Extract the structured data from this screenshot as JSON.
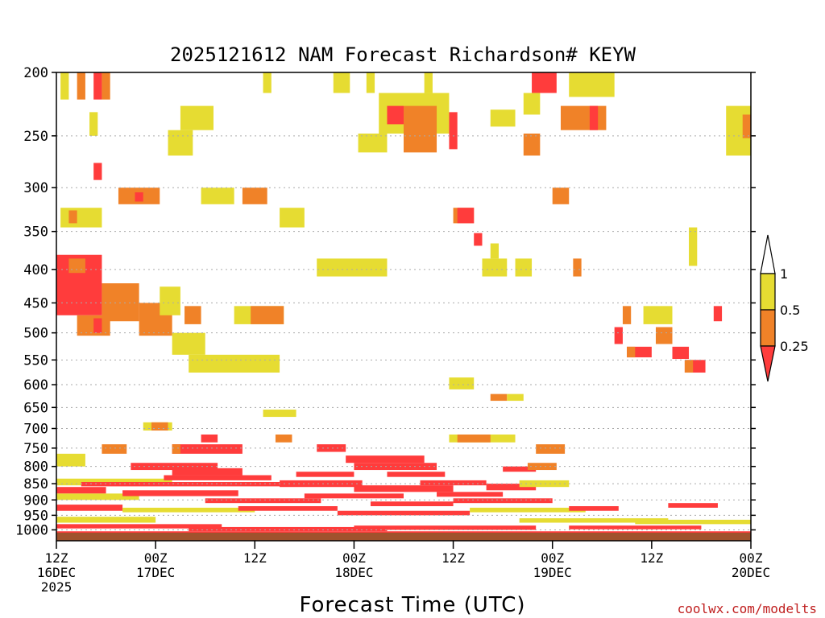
{
  "chart_data": {
    "type": "heatmap",
    "title": "2025121612 NAM Forecast Richardson# KEYW",
    "xlabel": "Forecast Time (UTC)",
    "ylabel": "",
    "credit": "coolwx.com/modelts",
    "y_scale": "log",
    "ylim": [
      200,
      1025
    ],
    "y_ticks": [
      {
        "v": 200,
        "t": "200"
      },
      {
        "v": 250,
        "t": "250"
      },
      {
        "v": 300,
        "t": "300"
      },
      {
        "v": 350,
        "t": "350"
      },
      {
        "v": 400,
        "t": "400"
      },
      {
        "v": 450,
        "t": "450"
      },
      {
        "v": 500,
        "t": "500"
      },
      {
        "v": 550,
        "t": "550"
      },
      {
        "v": 600,
        "t": "600"
      },
      {
        "v": 650,
        "t": "650"
      },
      {
        "v": 700,
        "t": "700"
      },
      {
        "v": 750,
        "t": "750"
      },
      {
        "v": 800,
        "t": "800"
      },
      {
        "v": 850,
        "t": "850"
      },
      {
        "v": 900,
        "t": "900"
      },
      {
        "v": 950,
        "t": "950"
      },
      {
        "v": 1000,
        "t": "1000"
      }
    ],
    "x_ticks": [
      {
        "h": 0,
        "l1": "12Z",
        "l2": "16DEC",
        "l3": "2025"
      },
      {
        "h": 12,
        "l1": "00Z",
        "l2": "17DEC",
        "l3": ""
      },
      {
        "h": 24,
        "l1": "12Z",
        "l2": "",
        "l3": ""
      },
      {
        "h": 36,
        "l1": "00Z",
        "l2": "18DEC",
        "l3": ""
      },
      {
        "h": 48,
        "l1": "12Z",
        "l2": "",
        "l3": ""
      },
      {
        "h": 60,
        "l1": "00Z",
        "l2": "19DEC",
        "l3": ""
      },
      {
        "h": 72,
        "l1": "12Z",
        "l2": "",
        "l3": ""
      },
      {
        "h": 84,
        "l1": "00Z",
        "l2": "20DEC",
        "l3": ""
      }
    ],
    "xlim": [
      0,
      84
    ],
    "colors": {
      "lt025": "#ff3c3c",
      "r025_05": "#f08228",
      "r05_1": "#e6dc32",
      "ground": "#a0522d"
    },
    "legend": {
      "labels": [
        "1",
        "0.5",
        "0.25"
      ],
      "placement": "right"
    },
    "patches": [
      {
        "x0": 0.5,
        "x1": 1.5,
        "p0": 200,
        "p1": 220,
        "c": "y"
      },
      {
        "x0": 2.5,
        "x1": 3.5,
        "p0": 200,
        "p1": 220,
        "c": "o"
      },
      {
        "x0": 4.5,
        "x1": 5.5,
        "p0": 200,
        "p1": 220,
        "c": "r"
      },
      {
        "x0": 5.5,
        "x1": 6.5,
        "p0": 200,
        "p1": 220,
        "c": "o"
      },
      {
        "x0": 4,
        "x1": 5,
        "p0": 230,
        "p1": 250,
        "c": "y"
      },
      {
        "x0": 15,
        "x1": 19,
        "p0": 225,
        "p1": 245,
        "c": "y"
      },
      {
        "x0": 13.5,
        "x1": 16.5,
        "p0": 245,
        "p1": 268,
        "c": "y"
      },
      {
        "x0": 25,
        "x1": 26,
        "p0": 200,
        "p1": 215,
        "c": "y"
      },
      {
        "x0": 33.5,
        "x1": 35.5,
        "p0": 200,
        "p1": 215,
        "c": "y"
      },
      {
        "x0": 37.5,
        "x1": 38.5,
        "p0": 200,
        "p1": 215,
        "c": "y"
      },
      {
        "x0": 44.5,
        "x1": 45.5,
        "p0": 200,
        "p1": 215,
        "c": "y"
      },
      {
        "x0": 39,
        "x1": 47.5,
        "p0": 215,
        "p1": 248,
        "c": "y"
      },
      {
        "x0": 40,
        "x1": 42,
        "p0": 225,
        "p1": 240,
        "c": "r"
      },
      {
        "x0": 42,
        "x1": 46,
        "p0": 225,
        "p1": 265,
        "c": "o"
      },
      {
        "x0": 47.5,
        "x1": 48.5,
        "p0": 230,
        "p1": 262,
        "c": "r"
      },
      {
        "x0": 36.5,
        "x1": 40,
        "p0": 248,
        "p1": 265,
        "c": "y"
      },
      {
        "x0": 52.5,
        "x1": 55.5,
        "p0": 228,
        "p1": 242,
        "c": "y"
      },
      {
        "x0": 57.5,
        "x1": 60.5,
        "p0": 200,
        "p1": 215,
        "c": "r"
      },
      {
        "x0": 56.5,
        "x1": 58.5,
        "p0": 215,
        "p1": 232,
        "c": "y"
      },
      {
        "x0": 56.5,
        "x1": 58.5,
        "p0": 248,
        "p1": 268,
        "c": "o"
      },
      {
        "x0": 62,
        "x1": 67.5,
        "p0": 200,
        "p1": 218,
        "c": "y"
      },
      {
        "x0": 61,
        "x1": 66.5,
        "p0": 225,
        "p1": 245,
        "c": "o"
      },
      {
        "x0": 64.5,
        "x1": 65.5,
        "p0": 225,
        "p1": 245,
        "c": "r"
      },
      {
        "x0": 81,
        "x1": 84,
        "p0": 225,
        "p1": 268,
        "c": "y"
      },
      {
        "x0": 83,
        "x1": 84,
        "p0": 232,
        "p1": 252,
        "c": "o"
      },
      {
        "x0": 4.5,
        "x1": 5.5,
        "p0": 275,
        "p1": 292,
        "c": "r"
      },
      {
        "x0": 7.5,
        "x1": 12.5,
        "p0": 300,
        "p1": 318,
        "c": "o"
      },
      {
        "x0": 9.5,
        "x1": 10.5,
        "p0": 305,
        "p1": 315,
        "c": "r"
      },
      {
        "x0": 17.5,
        "x1": 21.5,
        "p0": 300,
        "p1": 318,
        "c": "y"
      },
      {
        "x0": 22.5,
        "x1": 25.5,
        "p0": 300,
        "p1": 318,
        "c": "o"
      },
      {
        "x0": 27,
        "x1": 30,
        "p0": 322,
        "p1": 345,
        "c": "y"
      },
      {
        "x0": 48,
        "x1": 50.5,
        "p0": 322,
        "p1": 340,
        "c": "o"
      },
      {
        "x0": 48.5,
        "x1": 50.5,
        "p0": 322,
        "p1": 340,
        "c": "r"
      },
      {
        "x0": 60,
        "x1": 62,
        "p0": 300,
        "p1": 318,
        "c": "o"
      },
      {
        "x0": 0.5,
        "x1": 5.5,
        "p0": 322,
        "p1": 345,
        "c": "y"
      },
      {
        "x0": 1.5,
        "x1": 2.5,
        "p0": 325,
        "p1": 340,
        "c": "o"
      },
      {
        "x0": 50.5,
        "x1": 51.5,
        "p0": 352,
        "p1": 368,
        "c": "r"
      },
      {
        "x0": 0,
        "x1": 5.5,
        "p0": 380,
        "p1": 470,
        "c": "r"
      },
      {
        "x0": 1.5,
        "x1": 3.5,
        "p0": 385,
        "p1": 405,
        "c": "o"
      },
      {
        "x0": 5.5,
        "x1": 10,
        "p0": 420,
        "p1": 480,
        "c": "o"
      },
      {
        "x0": 10,
        "x1": 14,
        "p0": 450,
        "p1": 505,
        "c": "o"
      },
      {
        "x0": 2.5,
        "x1": 6.5,
        "p0": 470,
        "p1": 505,
        "c": "o"
      },
      {
        "x0": 4.5,
        "x1": 5.5,
        "p0": 475,
        "p1": 500,
        "c": "r"
      },
      {
        "x0": 12.5,
        "x1": 15,
        "p0": 425,
        "p1": 470,
        "c": "y"
      },
      {
        "x0": 14,
        "x1": 18,
        "p0": 500,
        "p1": 540,
        "c": "y"
      },
      {
        "x0": 16,
        "x1": 27,
        "p0": 540,
        "p1": 575,
        "c": "y"
      },
      {
        "x0": 15.5,
        "x1": 17.5,
        "p0": 455,
        "p1": 485,
        "c": "o"
      },
      {
        "x0": 21.5,
        "x1": 27.5,
        "p0": 455,
        "p1": 485,
        "c": "y"
      },
      {
        "x0": 23.5,
        "x1": 27.5,
        "p0": 455,
        "p1": 485,
        "c": "o"
      },
      {
        "x0": 31.5,
        "x1": 40,
        "p0": 385,
        "p1": 410,
        "c": "y"
      },
      {
        "x0": 51.5,
        "x1": 54.5,
        "p0": 385,
        "p1": 410,
        "c": "y"
      },
      {
        "x0": 55.5,
        "x1": 57.5,
        "p0": 385,
        "p1": 410,
        "c": "y"
      },
      {
        "x0": 52.5,
        "x1": 53.5,
        "p0": 365,
        "p1": 385,
        "c": "y"
      },
      {
        "x0": 62.5,
        "x1": 63.5,
        "p0": 385,
        "p1": 410,
        "c": "o"
      },
      {
        "x0": 76.5,
        "x1": 77.5,
        "p0": 345,
        "p1": 395,
        "c": "y"
      },
      {
        "x0": 68.5,
        "x1": 69.5,
        "p0": 455,
        "p1": 485,
        "c": "o"
      },
      {
        "x0": 71,
        "x1": 74.5,
        "p0": 455,
        "p1": 485,
        "c": "y"
      },
      {
        "x0": 72.5,
        "x1": 74.5,
        "p0": 490,
        "p1": 520,
        "c": "o"
      },
      {
        "x0": 67.5,
        "x1": 68.5,
        "p0": 490,
        "p1": 520,
        "c": "r"
      },
      {
        "x0": 69,
        "x1": 72,
        "p0": 525,
        "p1": 545,
        "c": "r"
      },
      {
        "x0": 69,
        "x1": 70,
        "p0": 525,
        "p1": 545,
        "c": "o"
      },
      {
        "x0": 74.5,
        "x1": 76.5,
        "p0": 525,
        "p1": 548,
        "c": "r"
      },
      {
        "x0": 76,
        "x1": 78.5,
        "p0": 550,
        "p1": 575,
        "c": "r"
      },
      {
        "x0": 76,
        "x1": 77,
        "p0": 550,
        "p1": 575,
        "c": "o"
      },
      {
        "x0": 79.5,
        "x1": 80.5,
        "p0": 455,
        "p1": 480,
        "c": "r"
      },
      {
        "x0": 47.5,
        "x1": 50.5,
        "p0": 585,
        "p1": 610,
        "c": "y"
      },
      {
        "x0": 52.5,
        "x1": 54.5,
        "p0": 620,
        "p1": 635,
        "c": "o"
      },
      {
        "x0": 54.5,
        "x1": 56.5,
        "p0": 620,
        "p1": 635,
        "c": "y"
      },
      {
        "x0": 25,
        "x1": 29,
        "p0": 655,
        "p1": 672,
        "c": "y"
      },
      {
        "x0": 10.5,
        "x1": 14,
        "p0": 685,
        "p1": 705,
        "c": "y"
      },
      {
        "x0": 11.5,
        "x1": 13.5,
        "p0": 685,
        "p1": 705,
        "c": "o"
      },
      {
        "x0": 47.5,
        "x1": 55.5,
        "p0": 715,
        "p1": 735,
        "c": "y"
      },
      {
        "x0": 48.5,
        "x1": 52.5,
        "p0": 715,
        "p1": 735,
        "c": "o"
      },
      {
        "x0": 26.5,
        "x1": 28.5,
        "p0": 715,
        "p1": 735,
        "c": "o"
      },
      {
        "x0": 17.5,
        "x1": 19.5,
        "p0": 715,
        "p1": 735,
        "c": "r"
      },
      {
        "x0": 5.5,
        "x1": 8.5,
        "p0": 740,
        "p1": 765,
        "c": "o"
      },
      {
        "x0": 14,
        "x1": 22.5,
        "p0": 740,
        "p1": 765,
        "c": "r"
      },
      {
        "x0": 14,
        "x1": 15,
        "p0": 740,
        "p1": 765,
        "c": "o"
      },
      {
        "x0": 31.5,
        "x1": 35,
        "p0": 740,
        "p1": 760,
        "c": "r"
      },
      {
        "x0": 58,
        "x1": 61.5,
        "p0": 740,
        "p1": 765,
        "c": "o"
      },
      {
        "x0": 0,
        "x1": 3.5,
        "p0": 765,
        "p1": 800,
        "c": "y"
      },
      {
        "x0": 9,
        "x1": 19.5,
        "p0": 790,
        "p1": 810,
        "c": "r"
      },
      {
        "x0": 14,
        "x1": 22.5,
        "p0": 805,
        "p1": 825,
        "c": "r"
      },
      {
        "x0": 35,
        "x1": 44.5,
        "p0": 770,
        "p1": 790,
        "c": "r"
      },
      {
        "x0": 36,
        "x1": 46,
        "p0": 790,
        "p1": 810,
        "c": "r"
      },
      {
        "x0": 40,
        "x1": 47,
        "p0": 815,
        "p1": 830,
        "c": "r"
      },
      {
        "x0": 29,
        "x1": 36,
        "p0": 815,
        "p1": 830,
        "c": "r"
      },
      {
        "x0": 54,
        "x1": 58,
        "p0": 800,
        "p1": 815,
        "c": "r"
      },
      {
        "x0": 57,
        "x1": 60.5,
        "p0": 790,
        "p1": 810,
        "c": "o"
      },
      {
        "x0": 0,
        "x1": 14,
        "p0": 835,
        "p1": 855,
        "c": "y"
      },
      {
        "x0": 3,
        "x1": 30,
        "p0": 845,
        "p1": 858,
        "c": "r"
      },
      {
        "x0": 13,
        "x1": 26,
        "p0": 825,
        "p1": 840,
        "c": "r"
      },
      {
        "x0": 27,
        "x1": 37,
        "p0": 840,
        "p1": 860,
        "c": "r"
      },
      {
        "x0": 36,
        "x1": 48,
        "p0": 855,
        "p1": 875,
        "c": "r"
      },
      {
        "x0": 44,
        "x1": 52,
        "p0": 840,
        "p1": 855,
        "c": "r"
      },
      {
        "x0": 46,
        "x1": 54,
        "p0": 875,
        "p1": 890,
        "c": "r"
      },
      {
        "x0": 52,
        "x1": 58,
        "p0": 850,
        "p1": 870,
        "c": "r"
      },
      {
        "x0": 56,
        "x1": 62,
        "p0": 840,
        "p1": 860,
        "c": "y"
      },
      {
        "x0": 0,
        "x1": 6,
        "p0": 860,
        "p1": 880,
        "c": "r"
      },
      {
        "x0": 0,
        "x1": 10,
        "p0": 880,
        "p1": 900,
        "c": "y"
      },
      {
        "x0": 8,
        "x1": 22,
        "p0": 870,
        "p1": 888,
        "c": "r"
      },
      {
        "x0": 18,
        "x1": 32,
        "p0": 895,
        "p1": 910,
        "c": "r"
      },
      {
        "x0": 30,
        "x1": 42,
        "p0": 880,
        "p1": 895,
        "c": "r"
      },
      {
        "x0": 38,
        "x1": 48,
        "p0": 905,
        "p1": 920,
        "c": "r"
      },
      {
        "x0": 48,
        "x1": 60,
        "p0": 895,
        "p1": 910,
        "c": "r"
      },
      {
        "x0": 0,
        "x1": 8,
        "p0": 915,
        "p1": 935,
        "c": "r"
      },
      {
        "x0": 8,
        "x1": 24,
        "p0": 925,
        "p1": 940,
        "c": "y"
      },
      {
        "x0": 22,
        "x1": 34,
        "p0": 920,
        "p1": 935,
        "c": "r"
      },
      {
        "x0": 34,
        "x1": 50,
        "p0": 935,
        "p1": 950,
        "c": "r"
      },
      {
        "x0": 50,
        "x1": 64,
        "p0": 925,
        "p1": 940,
        "c": "y"
      },
      {
        "x0": 62,
        "x1": 68,
        "p0": 920,
        "p1": 935,
        "c": "r"
      },
      {
        "x0": 74,
        "x1": 80,
        "p0": 910,
        "p1": 925,
        "c": "r"
      },
      {
        "x0": 0,
        "x1": 12,
        "p0": 955,
        "p1": 975,
        "c": "y"
      },
      {
        "x0": 0,
        "x1": 20,
        "p0": 980,
        "p1": 995,
        "c": "r"
      },
      {
        "x0": 16,
        "x1": 40,
        "p0": 990,
        "p1": 1005,
        "c": "r"
      },
      {
        "x0": 36,
        "x1": 58,
        "p0": 985,
        "p1": 1000,
        "c": "r"
      },
      {
        "x0": 56,
        "x1": 74,
        "p0": 960,
        "p1": 975,
        "c": "y"
      },
      {
        "x0": 62,
        "x1": 78,
        "p0": 985,
        "p1": 998,
        "c": "r"
      },
      {
        "x0": 70,
        "x1": 84,
        "p0": 965,
        "p1": 980,
        "c": "y"
      },
      {
        "x0": 0,
        "x1": 84,
        "p0": 1005,
        "p1": 1012,
        "c": "r"
      }
    ]
  }
}
